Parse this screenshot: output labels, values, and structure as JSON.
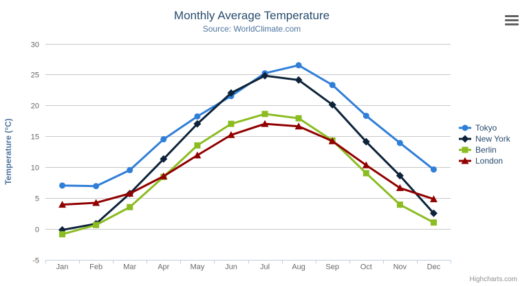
{
  "header": {
    "title": "Monthly Average Temperature",
    "subtitle": "Source: WorldClimate.com"
  },
  "credits": {
    "label": "Highcharts.com"
  },
  "theme": {
    "title_color": "#274b6d",
    "subtitle_color": "#4d759e",
    "axis_label_color": "#666666",
    "axis_title_color": "#4d759e",
    "axis_line_color": "#C0D0E0",
    "grid_color": "#C8C8C8",
    "legend_text_color": "#274b6d",
    "credits_color": "#909090",
    "export_icon_color": "#616161",
    "background": "#ffffff"
  },
  "chart_data": {
    "type": "line",
    "title": "Monthly Average Temperature",
    "subtitle": "Source: WorldClimate.com",
    "xlabel": "",
    "ylabel": "Temperature (°C)",
    "ylim": [
      -5,
      30
    ],
    "yticks": [
      -5,
      0,
      5,
      10,
      15,
      20,
      25,
      30
    ],
    "grid": true,
    "legend_position": "right",
    "categories": [
      "Jan",
      "Feb",
      "Mar",
      "Apr",
      "May",
      "Jun",
      "Jul",
      "Aug",
      "Sep",
      "Oct",
      "Nov",
      "Dec"
    ],
    "series": [
      {
        "name": "Tokyo",
        "color": "#2f7ed8",
        "marker": "circle",
        "values": [
          7.0,
          6.9,
          9.5,
          14.5,
          18.2,
          21.5,
          25.2,
          26.5,
          23.3,
          18.3,
          13.9,
          9.6
        ]
      },
      {
        "name": "New York",
        "color": "#0d233a",
        "marker": "diamond",
        "values": [
          -0.2,
          0.8,
          5.7,
          11.3,
          17.0,
          22.0,
          24.8,
          24.1,
          20.1,
          14.1,
          8.6,
          2.5
        ]
      },
      {
        "name": "Berlin",
        "color": "#8bbc21",
        "marker": "square",
        "values": [
          -0.9,
          0.6,
          3.5,
          8.4,
          13.5,
          17.0,
          18.6,
          17.9,
          14.3,
          9.0,
          3.9,
          1.0
        ]
      },
      {
        "name": "London",
        "color": "#910000",
        "marker": "triangle",
        "values": [
          3.9,
          4.2,
          5.7,
          8.5,
          11.9,
          15.2,
          17.0,
          16.6,
          14.2,
          10.3,
          6.6,
          4.8
        ]
      }
    ]
  }
}
